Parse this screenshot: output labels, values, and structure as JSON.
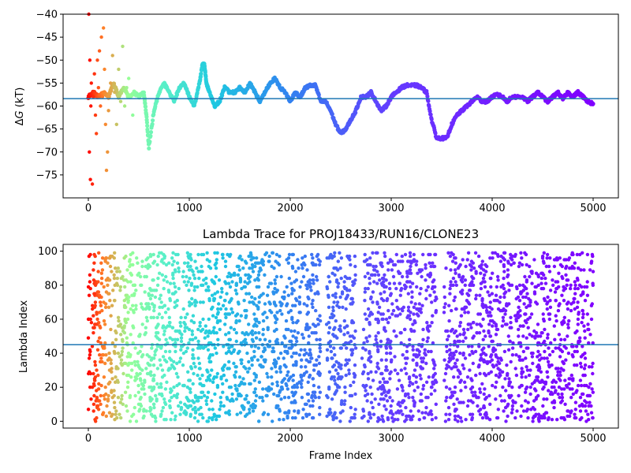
{
  "colors": {
    "refline": "#1f77b4",
    "frame": "#000000",
    "colormap": "rainbow (reversed over frame index: red at 0, purple at 5000)"
  },
  "chart_data": [
    {
      "type": "scatter",
      "title": "",
      "xlabel": "",
      "ylabel": "ΔG (kT)",
      "ylabel_prefix": "Δ",
      "ylabel_var": "G",
      "ylabel_suffix": " (kT)",
      "xlim": [
        -250,
        5250
      ],
      "ylim": [
        -80,
        -40
      ],
      "xticks": [
        0,
        1000,
        2000,
        3000,
        4000,
        5000
      ],
      "xtick_labels": [
        "0",
        "1000",
        "2000",
        "3000",
        "4000",
        "5000"
      ],
      "yticks": [
        -75,
        -70,
        -65,
        -60,
        -55,
        -50,
        -45,
        -40
      ],
      "ytick_labels": [
        "−75",
        "−70",
        "−65",
        "−60",
        "−55",
        "−50",
        "−45",
        "−40"
      ],
      "hline": -58.4,
      "grid": false,
      "series_trace": {
        "x": [
          0,
          50,
          100,
          150,
          200,
          250,
          300,
          350,
          400,
          450,
          500,
          550,
          575,
          600,
          650,
          700,
          750,
          800,
          850,
          900,
          950,
          1000,
          1050,
          1100,
          1130,
          1150,
          1170,
          1200,
          1250,
          1300,
          1350,
          1400,
          1450,
          1500,
          1550,
          1600,
          1650,
          1700,
          1750,
          1800,
          1850,
          1900,
          1950,
          2000,
          2050,
          2100,
          2150,
          2200,
          2250,
          2300,
          2350,
          2400,
          2450,
          2500,
          2550,
          2600,
          2650,
          2700,
          2750,
          2800,
          2850,
          2900,
          2950,
          3000,
          3050,
          3100,
          3150,
          3200,
          3250,
          3300,
          3350,
          3400,
          3450,
          3500,
          3550,
          3600,
          3650,
          3700,
          3750,
          3800,
          3850,
          3900,
          3950,
          4000,
          4050,
          4100,
          4150,
          4200,
          4250,
          4300,
          4350,
          4400,
          4450,
          4500,
          4550,
          4600,
          4650,
          4700,
          4750,
          4800,
          4850,
          4900,
          4950,
          5000
        ],
        "y": [
          -58,
          -57,
          -58,
          -57,
          -58,
          -55,
          -58,
          -56,
          -58,
          -57,
          -58,
          -57,
          -62,
          -69,
          -61,
          -57,
          -55,
          -57,
          -59,
          -56,
          -55,
          -58,
          -60,
          -55,
          -51,
          -51,
          -55,
          -57,
          -60,
          -59,
          -56,
          -57,
          -57,
          -56,
          -57,
          -55,
          -57,
          -59,
          -57,
          -55,
          -54,
          -56,
          -57,
          -59,
          -57,
          -58,
          -56,
          -55.5,
          -55.5,
          -59,
          -59,
          -61,
          -64,
          -66,
          -65,
          -63,
          -61,
          -58,
          -58,
          -57,
          -59,
          -61,
          -60,
          -58,
          -57,
          -56,
          -55.5,
          -55.5,
          -55.5,
          -56,
          -57,
          -63,
          -67,
          -67,
          -67,
          -64,
          -62,
          -61,
          -60,
          -59,
          -58,
          -59,
          -59,
          -58,
          -57.5,
          -58,
          -59,
          -58,
          -58,
          -58,
          -59,
          -58,
          -57,
          -58,
          -59,
          -58,
          -57,
          -58.5,
          -57,
          -58,
          -57,
          -58,
          -59,
          -59.5
        ]
      },
      "series_scatter_early": {
        "x": [
          5,
          10,
          15,
          20,
          25,
          30,
          40,
          50,
          60,
          70,
          80,
          90,
          100,
          110,
          120,
          130,
          140,
          150,
          160,
          170,
          180,
          190,
          200,
          220,
          240,
          260,
          280,
          300,
          320,
          340,
          360,
          380,
          400,
          420,
          440
        ],
        "y": [
          -40,
          -70,
          -50,
          -76,
          -60,
          -55,
          -77,
          -58,
          -53,
          -62,
          -66,
          -50,
          -56,
          -48,
          -60,
          -45,
          -58,
          -43,
          -52,
          -64,
          -74,
          -70,
          -61,
          -55,
          -49,
          -57,
          -64,
          -52,
          -59,
          -47,
          -60,
          -56,
          -54,
          -58,
          -62
        ]
      }
    },
    {
      "type": "scatter",
      "title": "Lambda Trace for PROJ18433/RUN16/CLONE23",
      "xlabel": "Frame Index",
      "ylabel": "Lambda Index",
      "xlim": [
        -250,
        5250
      ],
      "ylim": [
        -4,
        104
      ],
      "xticks": [
        0,
        1000,
        2000,
        3000,
        4000,
        5000
      ],
      "xtick_labels": [
        "0",
        "1000",
        "2000",
        "3000",
        "4000",
        "5000"
      ],
      "yticks": [
        0,
        20,
        40,
        60,
        80,
        100
      ],
      "ytick_labels": [
        "0",
        "20",
        "40",
        "60",
        "80",
        "100"
      ],
      "hline": 45,
      "grid": false,
      "n_points": 3500,
      "y_range": [
        0,
        99
      ],
      "gaps_in_x": [
        [
          2300,
          2360
        ],
        [
          2650,
          2710
        ],
        [
          3450,
          3520
        ]
      ]
    }
  ]
}
